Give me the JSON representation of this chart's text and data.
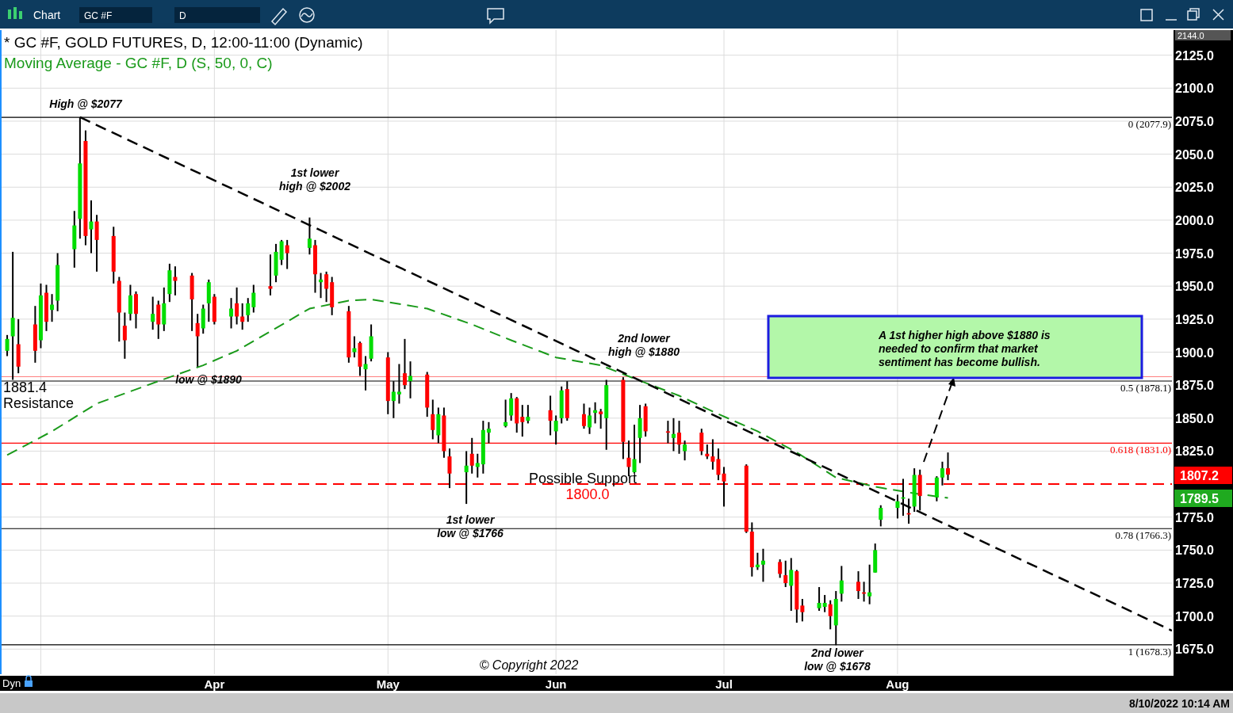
{
  "chart_data": {
    "type": "candlestick",
    "title": "* GC #F, GOLD FUTURES, D, 12:00-11:00 (Dynamic)",
    "x": [
      "2022-02-23",
      "2022-02-24",
      "2022-02-25",
      "2022-02-28",
      "2022-03-01",
      "2022-03-02",
      "2022-03-03",
      "2022-03-04",
      "2022-03-07",
      "2022-03-08",
      "2022-03-09",
      "2022-03-10",
      "2022-03-11",
      "2022-03-14",
      "2022-03-15",
      "2022-03-16",
      "2022-03-17",
      "2022-03-18",
      "2022-03-21",
      "2022-03-22",
      "2022-03-23",
      "2022-03-24",
      "2022-03-25",
      "2022-03-28",
      "2022-03-29",
      "2022-03-30",
      "2022-03-31",
      "2022-04-01",
      "2022-04-04",
      "2022-04-05",
      "2022-04-06",
      "2022-04-07",
      "2022-04-08",
      "2022-04-11",
      "2022-04-12",
      "2022-04-13",
      "2022-04-14",
      "2022-04-18",
      "2022-04-19",
      "2022-04-20",
      "2022-04-21",
      "2022-04-22",
      "2022-04-25",
      "2022-04-26",
      "2022-04-27",
      "2022-04-28",
      "2022-04-29",
      "2022-05-02",
      "2022-05-03",
      "2022-05-04",
      "2022-05-05",
      "2022-05-06",
      "2022-05-09",
      "2022-05-10",
      "2022-05-11",
      "2022-05-12",
      "2022-05-13",
      "2022-05-16",
      "2022-05-17",
      "2022-05-18",
      "2022-05-19",
      "2022-05-20",
      "2022-05-23",
      "2022-05-24",
      "2022-05-25",
      "2022-05-26",
      "2022-05-27",
      "2022-05-31",
      "2022-06-01",
      "2022-06-02",
      "2022-06-03",
      "2022-06-06",
      "2022-06-07",
      "2022-06-08",
      "2022-06-09",
      "2022-06-10",
      "2022-06-13",
      "2022-06-14",
      "2022-06-15",
      "2022-06-16",
      "2022-06-17",
      "2022-06-21",
      "2022-06-22",
      "2022-06-23",
      "2022-06-24",
      "2022-06-27",
      "2022-06-28",
      "2022-06-29",
      "2022-06-30",
      "2022-07-01",
      "2022-07-05",
      "2022-07-06",
      "2022-07-07",
      "2022-07-08",
      "2022-07-11",
      "2022-07-12",
      "2022-07-13",
      "2022-07-14",
      "2022-07-15",
      "2022-07-18",
      "2022-07-19",
      "2022-07-20",
      "2022-07-21",
      "2022-07-22",
      "2022-07-25",
      "2022-07-26",
      "2022-07-27",
      "2022-07-28",
      "2022-07-29",
      "2022-08-01",
      "2022-08-02",
      "2022-08-03",
      "2022-08-04",
      "2022-08-05",
      "2022-08-08",
      "2022-08-09",
      "2022-08-10"
    ],
    "ohlc": [
      [
        1901,
        1913,
        1897,
        1910
      ],
      [
        1912,
        1976,
        1879,
        1926
      ],
      [
        1906,
        1925,
        1884,
        1889
      ],
      [
        1921,
        1935,
        1892,
        1901
      ],
      [
        1909,
        1952,
        1903,
        1943
      ],
      [
        1945,
        1951,
        1916,
        1923
      ],
      [
        1932,
        1944,
        1923,
        1936
      ],
      [
        1939,
        1975,
        1931,
        1966
      ],
      [
        1978,
        2007,
        1964,
        1996
      ],
      [
        2001,
        2078,
        1986,
        2043
      ],
      [
        2060,
        2068,
        1981,
        1988
      ],
      [
        1993,
        2015,
        1975,
        1999
      ],
      [
        1999,
        2004,
        1961,
        1985
      ],
      [
        1988,
        1995,
        1952,
        1961
      ],
      [
        1954,
        1957,
        1908,
        1930
      ],
      [
        1920,
        1930,
        1895,
        1909
      ],
      [
        1929,
        1951,
        1924,
        1943
      ],
      [
        1944,
        1946,
        1918,
        1929
      ],
      [
        1923,
        1942,
        1917,
        1929
      ],
      [
        1936,
        1939,
        1910,
        1921
      ],
      [
        1921,
        1949,
        1916,
        1937
      ],
      [
        1944,
        1967,
        1938,
        1962
      ],
      [
        1957,
        1965,
        1943,
        1954
      ],
      [
        1958,
        1960,
        1916,
        1940
      ],
      [
        1922,
        1929,
        1889,
        1912
      ],
      [
        1918,
        1936,
        1914,
        1933
      ],
      [
        1937,
        1955,
        1923,
        1953
      ],
      [
        1942,
        1944,
        1921,
        1923
      ],
      [
        1927,
        1941,
        1918,
        1933
      ],
      [
        1937,
        1949,
        1921,
        1927
      ],
      [
        1927,
        1937,
        1917,
        1923
      ],
      [
        1928,
        1941,
        1923,
        1937
      ],
      [
        1934,
        1951,
        1930,
        1945
      ],
      [
        1950,
        1974,
        1943,
        1948
      ],
      [
        1958,
        1982,
        1953,
        1976
      ],
      [
        1970,
        1985,
        1966,
        1984
      ],
      [
        1981,
        1985,
        1963,
        1975
      ],
      [
        1979,
        2002,
        1974,
        1986
      ],
      [
        1981,
        1985,
        1945,
        1959
      ],
      [
        1953,
        1960,
        1941,
        1955
      ],
      [
        1959,
        1961,
        1938,
        1948
      ],
      [
        1953,
        1957,
        1928,
        1934
      ],
      [
        1931,
        1935,
        1892,
        1896
      ],
      [
        1900,
        1912,
        1896,
        1903
      ],
      [
        1907,
        1908,
        1882,
        1889
      ],
      [
        1887,
        1897,
        1871,
        1891
      ],
      [
        1895,
        1921,
        1893,
        1912
      ],
      [
        1896,
        1900,
        1853,
        1863
      ],
      [
        1863,
        1878,
        1850,
        1870
      ],
      [
        1868,
        1891,
        1861,
        1870
      ],
      [
        1884,
        1910,
        1872,
        1875
      ],
      [
        1878,
        1893,
        1865,
        1882
      ],
      [
        1883,
        1885,
        1851,
        1858
      ],
      [
        1853,
        1864,
        1834,
        1841
      ],
      [
        1837,
        1858,
        1831,
        1853
      ],
      [
        1852,
        1858,
        1820,
        1825
      ],
      [
        1821,
        1827,
        1797,
        1808
      ],
      [
        1809,
        1825,
        1785,
        1814
      ],
      [
        1823,
        1835,
        1808,
        1814
      ],
      [
        1813,
        1823,
        1805,
        1816
      ],
      [
        1815,
        1848,
        1808,
        1841
      ],
      [
        1839,
        1847,
        1831,
        1842
      ],
      [
        1844,
        1864,
        1843,
        1847
      ],
      [
        1852,
        1869,
        1848,
        1865
      ],
      [
        1865,
        1866,
        1839,
        1846
      ],
      [
        1851,
        1860,
        1836,
        1847
      ],
      [
        1848,
        1860,
        1846,
        1851
      ],
      [
        1856,
        1867,
        1837,
        1848
      ],
      [
        1840,
        1852,
        1830,
        1848
      ],
      [
        1850,
        1874,
        1846,
        1871
      ],
      [
        1872,
        1878,
        1848,
        1850
      ],
      [
        1853,
        1861,
        1842,
        1844
      ],
      [
        1843,
        1858,
        1838,
        1852
      ],
      [
        1854,
        1862,
        1846,
        1856
      ],
      [
        1855,
        1857,
        1842,
        1853
      ],
      [
        1850,
        1879,
        1826,
        1875
      ],
      [
        1879,
        1881,
        1819,
        1832
      ],
      [
        1820,
        1833,
        1806,
        1813
      ],
      [
        1809,
        1845,
        1808,
        1819
      ],
      [
        1835,
        1860,
        1816,
        1850
      ],
      [
        1859,
        1861,
        1836,
        1840
      ],
      [
        1840,
        1848,
        1831,
        1839
      ],
      [
        1835,
        1850,
        1825,
        1838
      ],
      [
        1839,
        1848,
        1823,
        1830
      ],
      [
        1825,
        1833,
        1818,
        1830
      ],
      [
        1839,
        1842,
        1822,
        1825
      ],
      [
        1823,
        1830,
        1819,
        1821
      ],
      [
        1821,
        1834,
        1811,
        1817
      ],
      [
        1819,
        1827,
        1803,
        1807
      ],
      [
        1808,
        1813,
        1783,
        1802
      ],
      [
        1814,
        1815,
        1763,
        1764
      ],
      [
        1764,
        1771,
        1730,
        1737
      ],
      [
        1737,
        1748,
        1735,
        1739
      ],
      [
        1739,
        1751,
        1726,
        1742
      ],
      [
        1741,
        1743,
        1729,
        1732
      ],
      [
        1731,
        1742,
        1722,
        1725
      ],
      [
        1723,
        1744,
        1704,
        1735
      ],
      [
        1734,
        1735,
        1695,
        1705
      ],
      [
        1708,
        1713,
        1696,
        1703
      ],
      [
        1706,
        1722,
        1704,
        1710
      ],
      [
        1707,
        1716,
        1703,
        1710
      ],
      [
        1709,
        1712,
        1690,
        1700
      ],
      [
        1693,
        1719,
        1678,
        1713
      ],
      [
        1717,
        1738,
        1711,
        1727
      ],
      [
        1726,
        1734,
        1713,
        1719
      ],
      [
        1718,
        1726,
        1711,
        1717
      ],
      [
        1715,
        1739,
        1709,
        1718
      ],
      [
        1733,
        1755,
        1733,
        1750
      ],
      [
        1773,
        1784,
        1768,
        1782
      ],
      [
        1782,
        1792,
        1774,
        1787
      ],
      [
        1789,
        1804,
        1776,
        1790
      ],
      [
        1778,
        1789,
        1770,
        1777
      ],
      [
        1783,
        1812,
        1779,
        1807
      ],
      [
        1807,
        1811,
        1780,
        1791
      ],
      [
        1790,
        1806,
        1787,
        1805
      ],
      [
        1805,
        1817,
        1799,
        1812
      ],
      [
        1812,
        1824,
        1803,
        1807.2
      ]
    ],
    "series": [
      {
        "type": "line",
        "name": "Moving Average - GC #F, D (S, 50, 0, C)",
        "color": "#1a9a1a",
        "line_style": "dashed",
        "x": [
          "2022-02-23",
          "2022-03-03",
          "2022-03-11",
          "2022-03-22",
          "2022-03-30",
          "2022-04-05",
          "2022-04-18",
          "2022-04-25",
          "2022-04-29",
          "2022-05-09",
          "2022-05-17",
          "2022-05-24",
          "2022-06-01",
          "2022-06-09",
          "2022-06-15",
          "2022-06-23",
          "2022-06-29",
          "2022-07-07",
          "2022-07-14",
          "2022-07-21",
          "2022-07-28",
          "2022-08-04",
          "2022-08-10"
        ],
        "values": [
          1822,
          1840,
          1861,
          1878,
          1890,
          1901,
          1933,
          1939,
          1940,
          1933,
          1921,
          1909,
          1896,
          1890,
          1880,
          1867,
          1855,
          1840,
          1824,
          1805,
          1798,
          1793,
          1789.5
        ]
      },
      {
        "type": "line",
        "color": "#000000",
        "line_style": "dashed",
        "x": [
          "2022-03-08",
          "2022-09-19"
        ],
        "values": [
          2078,
          1689
        ]
      }
    ],
    "xlim": [
      "2022-02-22",
      "2022-09-19"
    ],
    "ylim": [
      1656,
      2144
    ],
    "xticks": [
      {
        "value": "2022-03-01",
        "label": null
      },
      {
        "value": "2022-04-01",
        "label": "Apr"
      },
      {
        "value": "2022-05-02",
        "label": "May"
      },
      {
        "value": "2022-06-01",
        "label": "Jun"
      },
      {
        "value": "2022-07-01",
        "label": "Jul"
      },
      {
        "value": "2022-08-01",
        "label": "Aug"
      }
    ],
    "yticks": [
      {
        "value": 1675,
        "label": "1675.0"
      },
      {
        "value": 1700,
        "label": "1700.0"
      },
      {
        "value": 1725,
        "label": "1725.0"
      },
      {
        "value": 1750,
        "label": "1750.0"
      },
      {
        "value": 1775,
        "label": "1775.0"
      },
      {
        "value": 1825,
        "label": "1825.0"
      },
      {
        "value": 1850,
        "label": "1850.0"
      },
      {
        "value": 1875,
        "label": "1875.0"
      },
      {
        "value": 1900,
        "label": "1900.0"
      },
      {
        "value": 1925,
        "label": "1925.0"
      },
      {
        "value": 1950,
        "label": "1950.0"
      },
      {
        "value": 1975,
        "label": "1975.0"
      },
      {
        "value": 2000,
        "label": "2000.0"
      },
      {
        "value": 2025,
        "label": "2025.0"
      },
      {
        "value": 2050,
        "label": "2050.0"
      },
      {
        "value": 2075,
        "label": "2075.0"
      },
      {
        "value": 2100,
        "label": "2100.0"
      },
      {
        "value": 2125,
        "label": "2125.0"
      }
    ],
    "grid": true,
    "ref_lines": [
      {
        "axis": "y",
        "value": 2077.9,
        "label": "0 (2077.9)",
        "color": "#000000"
      },
      {
        "axis": "y",
        "value": 1878.1,
        "label": "0.5 (1878.1)",
        "color": "#000000"
      },
      {
        "axis": "y",
        "value": 1831.0,
        "label": "0.618 (1831.0)",
        "color": "#ff0000"
      },
      {
        "axis": "y",
        "value": 1766.3,
        "label": "0.78 (1766.3)",
        "color": "#000000"
      },
      {
        "axis": "y",
        "value": 1678.3,
        "label": "1 (1678.3)",
        "color": "#000000"
      },
      {
        "axis": "y",
        "value": 1881.4,
        "label": "1881.4\nResistance",
        "color": "#ff8080"
      },
      {
        "axis": "y",
        "value": 1800,
        "label": "1800.0",
        "color": "#ff0000",
        "line_style": "dashed"
      }
    ],
    "annotations": [
      "High @ $2077",
      "1st lower\nhigh @ $2002",
      "low @ $1890",
      "2nd  lower\nhigh @ $1880",
      "1st lower\nlow @ $1766",
      "2nd lower\nlow @ $1678",
      "Possible Support",
      "2144.0",
      "1807.2",
      "1789.5",
      "A 1st higher high above  $1880 is\nneeded to confirm that market\nsentiment has become bullish.",
      "© Copyright 2022",
      "Chart",
      "GC #F",
      "D",
      "Dyn",
      "8/10/2022 10:14 AM"
    ]
  }
}
